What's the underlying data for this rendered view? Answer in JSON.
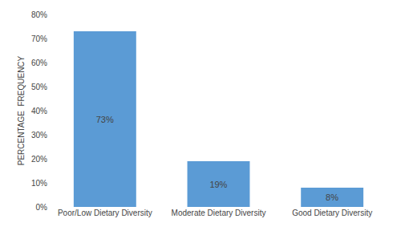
{
  "chart_data": {
    "type": "bar",
    "categories": [
      "Poor/Low Dietary Diversity",
      "Moderate Dietary Diversity",
      "Good Dietary Diversity"
    ],
    "values": [
      73,
      19,
      8
    ],
    "value_labels": [
      "73%",
      "19%",
      "8%"
    ],
    "data_labels": true,
    "color": "#5b9bd5",
    "ylabel": "PERCENTAGE  FREQUENCY",
    "ylim": [
      0,
      80
    ],
    "yticks": [
      {
        "value": 0,
        "label": "0%"
      },
      {
        "value": 10,
        "label": "10%"
      },
      {
        "value": 20,
        "label": "20%"
      },
      {
        "value": 30,
        "label": "30%"
      },
      {
        "value": 40,
        "label": "40%"
      },
      {
        "value": 50,
        "label": "50%"
      },
      {
        "value": 60,
        "label": "60%"
      },
      {
        "value": 70,
        "label": "70%"
      },
      {
        "value": 80,
        "label": "80%"
      }
    ],
    "grid": false
  }
}
